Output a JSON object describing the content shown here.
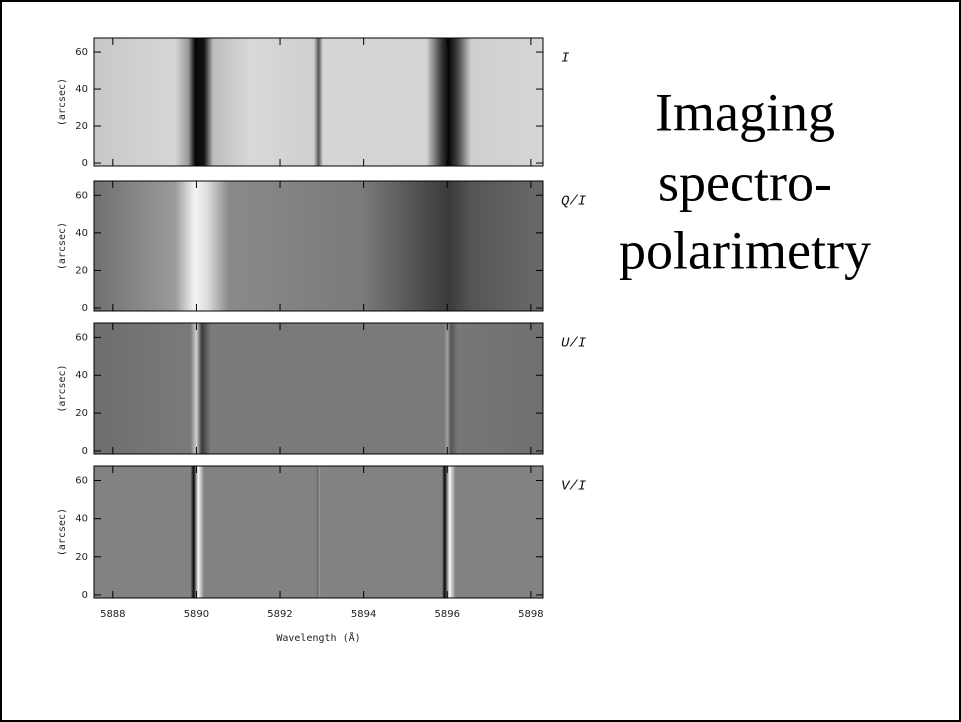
{
  "slide": {
    "title": [
      "Imaging",
      "spectro-",
      "polarimetry"
    ]
  },
  "figure": {
    "panels": [
      {
        "label": "I"
      },
      {
        "label": "Q/I"
      },
      {
        "label": "U/I"
      },
      {
        "label": "V/I"
      }
    ],
    "ylabel": "(arcsec)",
    "xlabel": "Wavelength (Å)",
    "xlim": [
      5887.55,
      5898.29
    ],
    "xticks": [
      5888,
      5890,
      5892,
      5894,
      5896,
      5898
    ],
    "ylim": [
      -1.6,
      67.6
    ],
    "yticks": [
      0,
      20,
      40,
      60
    ]
  }
}
